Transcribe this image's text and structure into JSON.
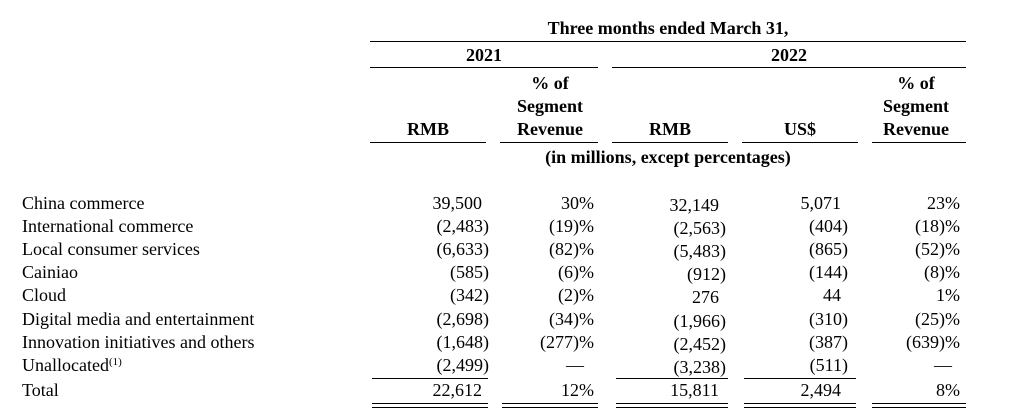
{
  "header": {
    "period": "Three months ended March 31,",
    "year_2021": "2021",
    "year_2022": "2022",
    "columns": {
      "rmb_2021": "RMB",
      "pct_2021_l1": "% of",
      "pct_2021_l2": "Segment",
      "pct_2021_l3": "Revenue",
      "rmb_2022": "RMB",
      "usd_2022": "US$",
      "pct_2022_l1": "% of",
      "pct_2022_l2": "Segment",
      "pct_2022_l3": "Revenue"
    },
    "units": "(in millions, except percentages)"
  },
  "rows": [
    {
      "label": "China commerce",
      "rmb2021": "39,500",
      "pct2021": "30%",
      "rmb2022": "32,149",
      "usd2022": "5,071",
      "pct2022": "23%"
    },
    {
      "label": "International commerce",
      "rmb2021": "(2,483)",
      "pct2021": "(19)%",
      "rmb2022": "(2,563)",
      "usd2022": "(404)",
      "pct2022": "(18)%"
    },
    {
      "label": "Local consumer services",
      "rmb2021": "(6,633)",
      "pct2021": "(82)%",
      "rmb2022": "(5,483)",
      "usd2022": "(865)",
      "pct2022": "(52)%"
    },
    {
      "label": "Cainiao",
      "rmb2021": "(585)",
      "pct2021": "(6)%",
      "rmb2022": "(912)",
      "usd2022": "(144)",
      "pct2022": "(8)%"
    },
    {
      "label": "Cloud",
      "rmb2021": "(342)",
      "pct2021": "(2)%",
      "rmb2022": "276",
      "usd2022": "44",
      "pct2022": "1%"
    },
    {
      "label": "Digital media and entertainment",
      "rmb2021": "(2,698)",
      "pct2021": "(34)%",
      "rmb2022": "(1,966)",
      "usd2022": "(310)",
      "pct2022": "(25)%"
    },
    {
      "label": "Innovation initiatives and others",
      "rmb2021": "(1,648)",
      "pct2021": "(277)%",
      "rmb2022": "(2,452)",
      "usd2022": "(387)",
      "pct2022": "(639)%"
    },
    {
      "label": "Unallocated",
      "footnote": "(1)",
      "rmb2021": "(2,499)",
      "pct2021": "—",
      "rmb2022": "(3,238)",
      "usd2022": "(511)",
      "pct2022": "—"
    },
    {
      "label": "Total",
      "rmb2021": "22,612",
      "pct2021": "12%",
      "rmb2022": "15,811",
      "usd2022": "2,494",
      "pct2022": "8%"
    }
  ]
}
